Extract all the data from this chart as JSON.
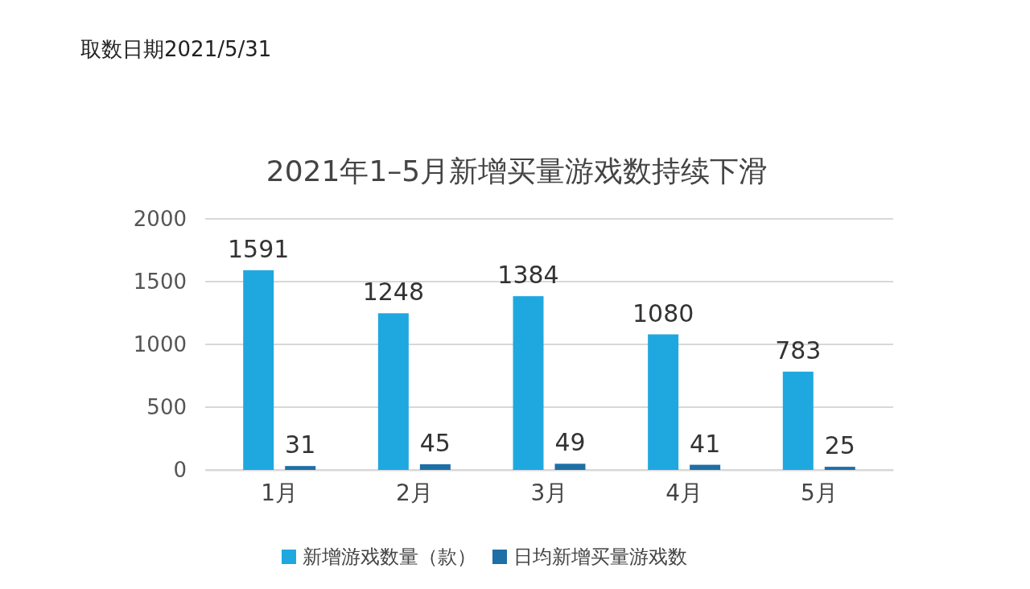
{
  "chart_data": {
    "type": "bar",
    "title": "2021年1–5月新增买量游戏数持续下滑",
    "annotations": [
      "取数日期2021/5/31"
    ],
    "categories": [
      "1月",
      "2月",
      "3月",
      "4月",
      "5月"
    ],
    "series": [
      {
        "name": "新增游戏数量（款）",
        "color": "#1fa8e0",
        "values": [
          1591,
          1248,
          1384,
          1080,
          783
        ]
      },
      {
        "name": "日均新增买量游戏数",
        "color": "#1e6fa6",
        "values": [
          31,
          45,
          49,
          41,
          25
        ]
      }
    ],
    "ylim": [
      0,
      2000
    ],
    "yticks": [
      0,
      500,
      1000,
      1500,
      2000
    ],
    "grid": "y",
    "legend": "bottom",
    "data_labels": true
  }
}
